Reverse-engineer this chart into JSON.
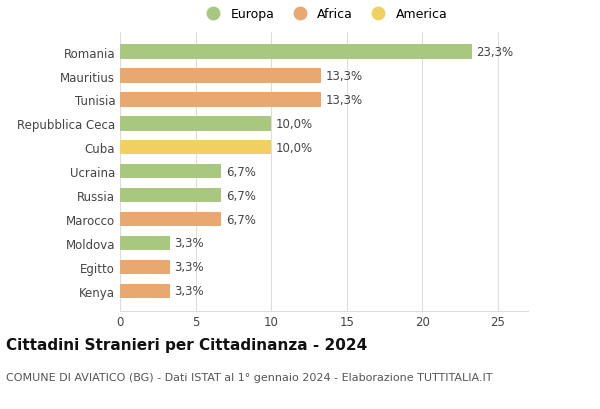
{
  "countries": [
    "Romania",
    "Mauritius",
    "Tunisia",
    "Repubblica Ceca",
    "Cuba",
    "Ucraina",
    "Russia",
    "Marocco",
    "Moldova",
    "Egitto",
    "Kenya"
  ],
  "values": [
    23.3,
    13.3,
    13.3,
    10.0,
    10.0,
    6.7,
    6.7,
    6.7,
    3.3,
    3.3,
    3.3
  ],
  "labels": [
    "23,3%",
    "13,3%",
    "13,3%",
    "10,0%",
    "10,0%",
    "6,7%",
    "6,7%",
    "6,7%",
    "3,3%",
    "3,3%",
    "3,3%"
  ],
  "continents": [
    "Europa",
    "Africa",
    "Africa",
    "Europa",
    "America",
    "Europa",
    "Europa",
    "Africa",
    "Europa",
    "Africa",
    "Africa"
  ],
  "colors": {
    "Europa": "#a8c880",
    "Africa": "#e8a870",
    "America": "#f0d060"
  },
  "legend_labels": [
    "Europa",
    "Africa",
    "America"
  ],
  "legend_colors": [
    "#a8c880",
    "#e8a870",
    "#f0d060"
  ],
  "xlim": [
    0,
    27
  ],
  "xticks": [
    0,
    5,
    10,
    15,
    20,
    25
  ],
  "title": "Cittadini Stranieri per Cittadinanza - 2024",
  "subtitle": "COMUNE DI AVIATICO (BG) - Dati ISTAT al 1° gennaio 2024 - Elaborazione TUTTITALIA.IT",
  "bg_color": "#ffffff",
  "grid_color": "#dddddd",
  "bar_height": 0.6,
  "label_fontsize": 8.5,
  "tick_fontsize": 8.5,
  "title_fontsize": 11,
  "subtitle_fontsize": 8
}
